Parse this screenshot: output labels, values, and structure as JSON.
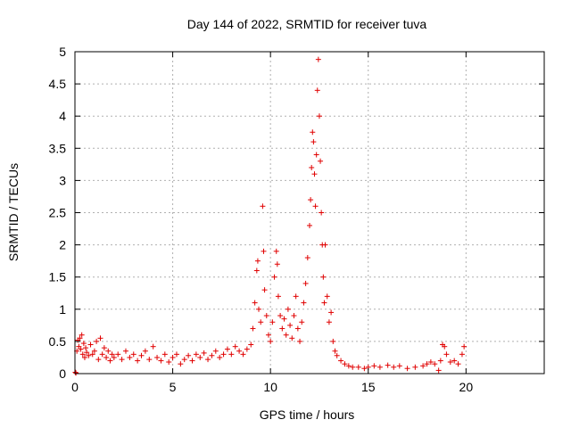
{
  "chart_data": {
    "type": "scatter",
    "title": "Day 144 of 2022, SRMTID for receiver tuva",
    "xlabel": "GPS time / hours",
    "ylabel": "SRMTID / TECUs",
    "xlim": [
      0,
      24
    ],
    "ylim": [
      0,
      5
    ],
    "x_ticks": [
      0,
      5,
      10,
      15,
      20
    ],
    "y_ticks": [
      0,
      0.5,
      1,
      1.5,
      2,
      2.5,
      3,
      3.5,
      4,
      4.5,
      5
    ],
    "x_tick_labels": [
      "0",
      "5",
      "10",
      "15",
      "20"
    ],
    "y_tick_labels": [
      "0",
      "0.5",
      "1",
      "1.5",
      "2",
      "2.5",
      "3",
      "3.5",
      "4",
      "4.5",
      "5"
    ],
    "grid": true,
    "marker": "+",
    "color": "#e00000",
    "series": [
      {
        "points": [
          [
            0.02,
            0.02
          ],
          [
            0.05,
            0.01
          ],
          [
            0.1,
            0.35
          ],
          [
            0.15,
            0.52
          ],
          [
            0.2,
            0.42
          ],
          [
            0.25,
            0.55
          ],
          [
            0.3,
            0.38
          ],
          [
            0.35,
            0.6
          ],
          [
            0.4,
            0.3
          ],
          [
            0.45,
            0.47
          ],
          [
            0.5,
            0.25
          ],
          [
            0.55,
            0.4
          ],
          [
            0.6,
            0.33
          ],
          [
            0.7,
            0.28
          ],
          [
            0.8,
            0.45
          ],
          [
            0.9,
            0.3
          ],
          [
            1.0,
            0.35
          ],
          [
            1.1,
            0.5
          ],
          [
            1.2,
            0.22
          ],
          [
            1.3,
            0.55
          ],
          [
            1.4,
            0.3
          ],
          [
            1.5,
            0.4
          ],
          [
            1.6,
            0.25
          ],
          [
            1.7,
            0.35
          ],
          [
            1.8,
            0.2
          ],
          [
            1.9,
            0.3
          ],
          [
            2.0,
            0.25
          ],
          [
            2.2,
            0.3
          ],
          [
            2.4,
            0.22
          ],
          [
            2.6,
            0.35
          ],
          [
            2.8,
            0.25
          ],
          [
            3.0,
            0.3
          ],
          [
            3.2,
            0.2
          ],
          [
            3.4,
            0.28
          ],
          [
            3.6,
            0.35
          ],
          [
            3.8,
            0.22
          ],
          [
            4.0,
            0.42
          ],
          [
            4.2,
            0.25
          ],
          [
            4.4,
            0.2
          ],
          [
            4.6,
            0.3
          ],
          [
            4.8,
            0.18
          ],
          [
            5.0,
            0.25
          ],
          [
            5.2,
            0.3
          ],
          [
            5.4,
            0.15
          ],
          [
            5.6,
            0.22
          ],
          [
            5.8,
            0.28
          ],
          [
            6.0,
            0.2
          ],
          [
            6.2,
            0.3
          ],
          [
            6.4,
            0.25
          ],
          [
            6.6,
            0.32
          ],
          [
            6.8,
            0.22
          ],
          [
            7.0,
            0.28
          ],
          [
            7.2,
            0.35
          ],
          [
            7.4,
            0.25
          ],
          [
            7.6,
            0.3
          ],
          [
            7.8,
            0.38
          ],
          [
            8.0,
            0.3
          ],
          [
            8.2,
            0.42
          ],
          [
            8.4,
            0.35
          ],
          [
            8.6,
            0.3
          ],
          [
            8.8,
            0.38
          ],
          [
            9.0,
            0.45
          ],
          [
            9.1,
            0.7
          ],
          [
            9.2,
            1.1
          ],
          [
            9.3,
            1.6
          ],
          [
            9.35,
            1.75
          ],
          [
            9.4,
            1.0
          ],
          [
            9.5,
            0.8
          ],
          [
            9.6,
            2.6
          ],
          [
            9.65,
            1.9
          ],
          [
            9.7,
            1.3
          ],
          [
            9.8,
            0.9
          ],
          [
            9.9,
            0.6
          ],
          [
            10.0,
            0.5
          ],
          [
            10.1,
            0.8
          ],
          [
            10.2,
            1.5
          ],
          [
            10.3,
            1.9
          ],
          [
            10.35,
            1.7
          ],
          [
            10.4,
            1.2
          ],
          [
            10.5,
            0.9
          ],
          [
            10.6,
            0.7
          ],
          [
            10.7,
            0.85
          ],
          [
            10.8,
            0.6
          ],
          [
            10.9,
            1.0
          ],
          [
            11.0,
            0.75
          ],
          [
            11.1,
            0.55
          ],
          [
            11.2,
            0.9
          ],
          [
            11.3,
            1.2
          ],
          [
            11.4,
            0.7
          ],
          [
            11.5,
            0.5
          ],
          [
            11.6,
            0.8
          ],
          [
            11.7,
            1.1
          ],
          [
            11.8,
            1.4
          ],
          [
            11.9,
            1.8
          ],
          [
            12.0,
            2.3
          ],
          [
            12.05,
            2.7
          ],
          [
            12.1,
            3.2
          ],
          [
            12.15,
            3.75
          ],
          [
            12.2,
            3.6
          ],
          [
            12.25,
            3.1
          ],
          [
            12.3,
            2.6
          ],
          [
            12.35,
            3.4
          ],
          [
            12.4,
            4.4
          ],
          [
            12.45,
            4.88
          ],
          [
            12.5,
            4.0
          ],
          [
            12.55,
            3.3
          ],
          [
            12.6,
            2.5
          ],
          [
            12.65,
            2.0
          ],
          [
            12.7,
            1.5
          ],
          [
            12.75,
            1.1
          ],
          [
            12.8,
            2.0
          ],
          [
            12.9,
            1.2
          ],
          [
            13.0,
            0.8
          ],
          [
            13.1,
            0.95
          ],
          [
            13.2,
            0.5
          ],
          [
            13.3,
            0.35
          ],
          [
            13.4,
            0.28
          ],
          [
            13.6,
            0.2
          ],
          [
            13.8,
            0.15
          ],
          [
            14.0,
            0.12
          ],
          [
            14.2,
            0.1
          ],
          [
            14.5,
            0.1
          ],
          [
            14.8,
            0.08
          ],
          [
            15.0,
            0.1
          ],
          [
            15.3,
            0.12
          ],
          [
            15.6,
            0.1
          ],
          [
            16.0,
            0.13
          ],
          [
            16.3,
            0.1
          ],
          [
            16.6,
            0.12
          ],
          [
            17.0,
            0.08
          ],
          [
            17.4,
            0.1
          ],
          [
            17.8,
            0.12
          ],
          [
            18.0,
            0.15
          ],
          [
            18.2,
            0.18
          ],
          [
            18.4,
            0.15
          ],
          [
            18.6,
            0.05
          ],
          [
            18.7,
            0.2
          ],
          [
            18.8,
            0.45
          ],
          [
            18.9,
            0.42
          ],
          [
            19.0,
            0.3
          ],
          [
            19.2,
            0.18
          ],
          [
            19.4,
            0.2
          ],
          [
            19.6,
            0.15
          ],
          [
            19.8,
            0.3
          ],
          [
            19.9,
            0.42
          ]
        ]
      }
    ]
  }
}
